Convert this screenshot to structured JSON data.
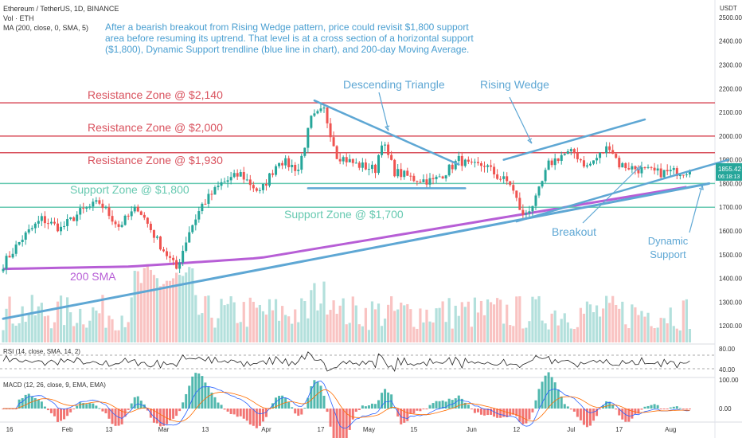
{
  "header": {
    "symbol_line": "Ethereum / TetherUS, 1D, BINANCE",
    "vol_line": "Vol · ETH",
    "ma_line": "MA (200, close, 0, SMA, 5)"
  },
  "annotation_note": "After a bearish breakout from Rising Wedge pattern, price could revisit $1,800 support area before resuming its uptrend. That level is at a cross section of a horizontal support ($1,800), Dynamic Support trendline (blue line in chart), and 200-day Moving Average.",
  "labels": {
    "res_2140": "Resistance Zone @ $2,140",
    "res_2000": "Resistance Zone @ $2,000",
    "res_1930": "Resistance Zone @ $1,930",
    "sup_1800": "Support Zone @ $1,800",
    "sup_1700": "Support Zone @ $1,700",
    "descending_triangle": "Descending Triangle",
    "rising_wedge": "Rising Wedge",
    "breakout": "Breakout",
    "dynamic_support_1": "Dynamic",
    "dynamic_support_2": "Support",
    "sma_200": "200 SMA"
  },
  "price_badge": {
    "value": "1855.42",
    "countdown": "06:18:13"
  },
  "axis_unit": "USDT",
  "rsi_label": "RSI (14, close, SMA, 14, 2)",
  "macd_label": "MACD (12, 26, close, 9, EMA, EMA)",
  "colors": {
    "resistance": "#d9525e",
    "support": "#66c9b0",
    "trend_blue": "#5ea7d4",
    "sma_purple": "#b75ed6",
    "up": "#26a69a",
    "down": "#ef5350"
  },
  "chart_data": {
    "type": "candlestick",
    "y_ticks": [
      1200,
      1300,
      1400,
      1500,
      1600,
      1700,
      1800,
      1900,
      2000,
      2100,
      2200,
      2300,
      2400,
      2500
    ],
    "ylim": [
      1130,
      2540
    ],
    "x_labels": [
      "16",
      "Feb",
      "13",
      "Mar",
      "13",
      "Apr",
      "17",
      "May",
      "15",
      "Jun",
      "12",
      "Jul",
      "17",
      "Aug"
    ],
    "horizontal_levels": {
      "resistance": [
        2140,
        2000,
        1930
      ],
      "support": [
        1800,
        1700
      ]
    },
    "last_price": 1855.42,
    "rsi_ticks": [
      80,
      40
    ],
    "macd_ticks": [
      100,
      0
    ],
    "price_waypoints": [
      [
        0,
        1460
      ],
      [
        6,
        1570
      ],
      [
        12,
        1650
      ],
      [
        18,
        1610
      ],
      [
        24,
        1680
      ],
      [
        30,
        1720
      ],
      [
        36,
        1620
      ],
      [
        42,
        1700
      ],
      [
        48,
        1560
      ],
      [
        52,
        1480
      ],
      [
        54,
        1440
      ],
      [
        58,
        1600
      ],
      [
        62,
        1710
      ],
      [
        68,
        1800
      ],
      [
        74,
        1840
      ],
      [
        80,
        1760
      ],
      [
        86,
        1900
      ],
      [
        92,
        1860
      ],
      [
        96,
        2070
      ],
      [
        100,
        2110
      ],
      [
        104,
        1920
      ],
      [
        110,
        1880
      ],
      [
        116,
        1860
      ],
      [
        118,
        1980
      ],
      [
        122,
        1850
      ],
      [
        128,
        1820
      ],
      [
        134,
        1810
      ],
      [
        138,
        1850
      ],
      [
        142,
        1900
      ],
      [
        146,
        1870
      ],
      [
        150,
        1880
      ],
      [
        154,
        1830
      ],
      [
        158,
        1800
      ],
      [
        160,
        1730
      ],
      [
        162,
        1660
      ],
      [
        166,
        1730
      ],
      [
        170,
        1880
      ],
      [
        174,
        1920
      ],
      [
        178,
        1930
      ],
      [
        182,
        1870
      ],
      [
        186,
        1920
      ],
      [
        189,
        1960
      ],
      [
        192,
        1880
      ],
      [
        198,
        1860
      ],
      [
        204,
        1845
      ],
      [
        210,
        1850
      ],
      [
        214,
        1855
      ]
    ]
  }
}
